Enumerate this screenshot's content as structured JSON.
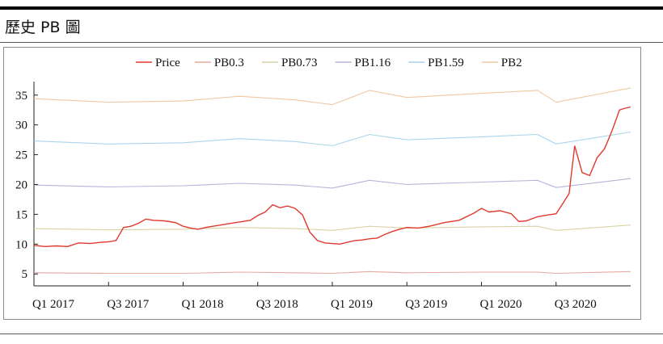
{
  "header": {
    "title": "歷史 PB 圖"
  },
  "chart_data": {
    "type": "line",
    "title": "",
    "xlabel": "",
    "ylabel": "",
    "ylim": [
      3,
      37
    ],
    "yticks": [
      5,
      10,
      15,
      20,
      25,
      30,
      35
    ],
    "xlim": [
      0,
      16.0
    ],
    "x_tick_positions": [
      0,
      2,
      4,
      6,
      8,
      10,
      12,
      14
    ],
    "x_tick_labels": [
      "Q1 2017",
      "Q3 2017",
      "Q1 2018",
      "Q3 2018",
      "Q1 2019",
      "Q3 2019",
      "Q1 2020",
      "Q3 2020"
    ],
    "legend_position": "top",
    "series": [
      {
        "name": "Price",
        "color": "#e03a2e",
        "x": [
          0,
          0.3,
          0.6,
          0.9,
          1.2,
          1.5,
          1.8,
          2.0,
          2.2,
          2.4,
          2.6,
          2.8,
          3.0,
          3.2,
          3.5,
          3.8,
          4.0,
          4.2,
          4.4,
          4.6,
          5.0,
          5.4,
          5.8,
          6.0,
          6.2,
          6.4,
          6.6,
          6.8,
          7.0,
          7.2,
          7.4,
          7.6,
          7.8,
          8.0,
          8.2,
          8.4,
          8.6,
          8.8,
          9.0,
          9.2,
          9.4,
          9.6,
          9.8,
          10.0,
          10.3,
          10.6,
          11.0,
          11.4,
          11.8,
          12.0,
          12.2,
          12.5,
          12.8,
          13.0,
          13.2,
          13.5,
          13.8,
          14.0,
          14.2,
          14.35,
          14.5,
          14.7,
          14.9,
          15.1,
          15.3,
          15.5,
          15.7,
          15.85,
          16.0
        ],
        "y": [
          9.8,
          9.6,
          9.7,
          9.6,
          10.2,
          10.1,
          10.3,
          10.4,
          10.6,
          12.8,
          13.0,
          13.5,
          14.2,
          14.0,
          13.9,
          13.6,
          13.0,
          12.7,
          12.5,
          12.8,
          13.2,
          13.6,
          14.0,
          14.8,
          15.4,
          16.6,
          16.1,
          16.4,
          16.0,
          14.9,
          12.0,
          10.6,
          10.2,
          10.1,
          10.0,
          10.3,
          10.6,
          10.7,
          10.9,
          11.0,
          11.6,
          12.1,
          12.5,
          12.8,
          12.7,
          13.0,
          13.6,
          14.0,
          15.2,
          16.0,
          15.4,
          15.6,
          15.1,
          13.8,
          13.9,
          14.6,
          14.9,
          15.1,
          17.0,
          18.5,
          26.5,
          22.0,
          21.5,
          24.5,
          26.0,
          29.0,
          32.5,
          32.8,
          33.0
        ]
      },
      {
        "name": "PB0.3",
        "color": "#e8a8a0",
        "x": [
          0,
          2,
          4,
          5.5,
          7,
          8,
          9,
          10,
          12,
          13.5,
          14,
          16
        ],
        "y": [
          5.2,
          5.1,
          5.1,
          5.3,
          5.2,
          5.1,
          5.4,
          5.2,
          5.3,
          5.3,
          5.1,
          5.4
        ]
      },
      {
        "name": "PB0.73",
        "color": "#d9d2a6",
        "x": [
          0,
          2,
          4,
          5.5,
          7,
          8,
          9,
          10,
          12,
          13.5,
          14,
          16
        ],
        "y": [
          12.6,
          12.4,
          12.5,
          12.8,
          12.6,
          12.3,
          13.0,
          12.7,
          12.9,
          13.0,
          12.3,
          13.2
        ]
      },
      {
        "name": "PB1.16",
        "color": "#b9b2da",
        "x": [
          0,
          2,
          4,
          5.5,
          7,
          8,
          9,
          10,
          12,
          13.5,
          14,
          16
        ],
        "y": [
          19.9,
          19.6,
          19.8,
          20.2,
          19.9,
          19.4,
          20.7,
          20.0,
          20.4,
          20.7,
          19.5,
          21.0
        ]
      },
      {
        "name": "PB1.59",
        "color": "#a9d4ec",
        "x": [
          0,
          2,
          4,
          5.5,
          7,
          8,
          9,
          10,
          12,
          13.5,
          14,
          16
        ],
        "y": [
          27.3,
          26.8,
          27.0,
          27.7,
          27.2,
          26.5,
          28.4,
          27.5,
          28.0,
          28.4,
          26.8,
          28.8
        ]
      },
      {
        "name": "PB2",
        "color": "#f0c8a4",
        "x": [
          0,
          2,
          4,
          5.5,
          7,
          8,
          9,
          10,
          12,
          13.5,
          14,
          16
        ],
        "y": [
          34.4,
          33.8,
          34.0,
          34.8,
          34.2,
          33.4,
          35.8,
          34.6,
          35.3,
          35.8,
          33.8,
          36.2
        ]
      }
    ]
  }
}
